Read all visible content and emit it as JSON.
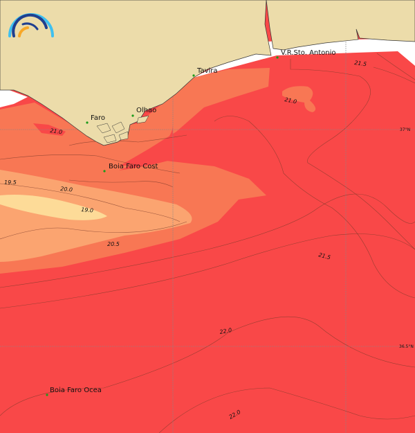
{
  "colors": {
    "land": "#ecdcaa",
    "sea_warm": "#f94848",
    "sea_mid": "#f87754",
    "sea_cool": "#fba470",
    "sea_coolest": "#fddb98",
    "station_marker": "#1a9a1a",
    "logo_light_blue": "#3fc0ef",
    "logo_dark_blue": "#1f3f8f",
    "logo_orange": "#f8a828"
  },
  "places": [
    {
      "name": "Faro"
    },
    {
      "name": "Olhao"
    },
    {
      "name": "Tavira"
    },
    {
      "name": "V.R.Sto. Antonio"
    },
    {
      "name": "Boia Faro Cost"
    },
    {
      "name": "Boia Faro Ocea"
    }
  ],
  "contour_labels": [
    "21.0",
    "19.5",
    "20.0",
    "19.0",
    "20.5",
    "21.0",
    "21.5",
    "21.5",
    "22.0",
    "22.0"
  ],
  "grid_labels": [
    "37°N",
    "36.5°N"
  ],
  "logo": {
    "icon": "rainbow-arcs-logo"
  }
}
